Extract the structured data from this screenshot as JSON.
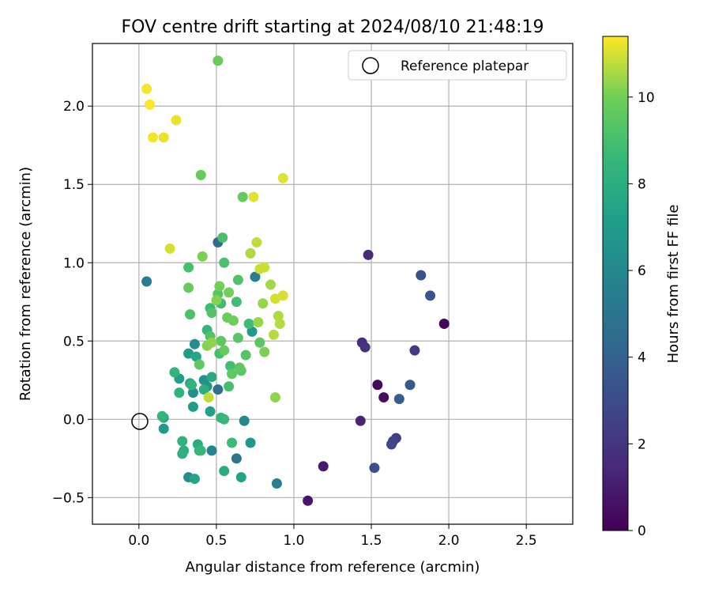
{
  "chart_data": {
    "type": "scatter",
    "title": "FOV centre drift starting at 2024/08/10 21:48:19",
    "xlabel": "Angular distance from reference (arcmin)",
    "ylabel": "Rotation from reference (arcmin)",
    "xlim": [
      -0.3,
      2.8
    ],
    "ylim": [
      -0.67,
      2.4
    ],
    "xticks": [
      0.0,
      0.5,
      1.0,
      1.5,
      2.0,
      2.5
    ],
    "xtick_labels": [
      "0.0",
      "0.5",
      "1.0",
      "1.5",
      "2.0",
      "2.5"
    ],
    "yticks": [
      -0.5,
      0.0,
      0.5,
      1.0,
      1.5,
      2.0
    ],
    "ytick_labels": [
      "−0.5",
      "0.0",
      "0.5",
      "1.0",
      "1.5",
      "2.0"
    ],
    "grid": true,
    "legend": {
      "placement": "top-right",
      "entries": [
        "Reference platepar"
      ]
    },
    "reference_point": {
      "x": 0.0,
      "y": 0.0
    },
    "colorbar": {
      "label": "Hours from first FF file",
      "colormap": "viridis",
      "range": [
        0,
        11.4
      ],
      "ticks": [
        0,
        2,
        4,
        6,
        8,
        10
      ],
      "tick_labels": [
        "0",
        "2",
        "4",
        "6",
        "8",
        "10"
      ]
    },
    "points": [
      {
        "x": 1.97,
        "y": 0.61,
        "c": 0.1
      },
      {
        "x": 1.54,
        "y": 0.22,
        "c": 0.3
      },
      {
        "x": 1.58,
        "y": 0.14,
        "c": 0.5
      },
      {
        "x": 1.09,
        "y": -0.52,
        "c": 0.8
      },
      {
        "x": 1.19,
        "y": -0.3,
        "c": 1.0
      },
      {
        "x": 1.43,
        "y": -0.01,
        "c": 1.3
      },
      {
        "x": 1.48,
        "y": 1.05,
        "c": 1.5
      },
      {
        "x": 1.44,
        "y": 0.49,
        "c": 1.7
      },
      {
        "x": 1.46,
        "y": 0.46,
        "c": 1.9
      },
      {
        "x": 1.78,
        "y": 0.44,
        "c": 2.2
      },
      {
        "x": 1.66,
        "y": -0.12,
        "c": 2.4
      },
      {
        "x": 1.64,
        "y": -0.14,
        "c": 2.6
      },
      {
        "x": 1.63,
        "y": -0.16,
        "c": 2.8
      },
      {
        "x": 1.52,
        "y": -0.31,
        "c": 3.0
      },
      {
        "x": 1.82,
        "y": 0.92,
        "c": 3.2
      },
      {
        "x": 1.88,
        "y": 0.79,
        "c": 3.4
      },
      {
        "x": 1.75,
        "y": 0.22,
        "c": 3.6
      },
      {
        "x": 1.68,
        "y": 0.13,
        "c": 3.8
      },
      {
        "x": 0.51,
        "y": 1.13,
        "c": 4.5
      },
      {
        "x": 0.51,
        "y": 0.19,
        "c": 4.7
      },
      {
        "x": 0.63,
        "y": -0.25,
        "c": 5.0
      },
      {
        "x": 0.05,
        "y": 0.88,
        "c": 5.5
      },
      {
        "x": 0.75,
        "y": 0.91,
        "c": 5.5
      },
      {
        "x": 0.89,
        "y": -0.41,
        "c": 5.6
      },
      {
        "x": 0.47,
        "y": -0.2,
        "c": 5.8
      },
      {
        "x": 0.68,
        "y": -0.01,
        "c": 6.0
      },
      {
        "x": 0.32,
        "y": -0.37,
        "c": 6.2
      },
      {
        "x": 0.36,
        "y": 0.48,
        "c": 6.3
      },
      {
        "x": 0.35,
        "y": 0.17,
        "c": 6.4
      },
      {
        "x": 0.42,
        "y": 0.25,
        "c": 6.5
      },
      {
        "x": 0.44,
        "y": 0.21,
        "c": 6.6
      },
      {
        "x": 0.72,
        "y": -0.15,
        "c": 6.7
      },
      {
        "x": 0.73,
        "y": 0.56,
        "c": 6.8
      },
      {
        "x": 0.16,
        "y": -0.06,
        "c": 6.9
      },
      {
        "x": 0.32,
        "y": 0.42,
        "c": 7.0
      },
      {
        "x": 0.26,
        "y": 0.26,
        "c": 7.1
      },
      {
        "x": 0.35,
        "y": 0.08,
        "c": 7.2
      },
      {
        "x": 0.46,
        "y": 0.05,
        "c": 7.3
      },
      {
        "x": 0.66,
        "y": -0.37,
        "c": 7.4
      },
      {
        "x": 0.36,
        "y": -0.38,
        "c": 7.5
      },
      {
        "x": 0.16,
        "y": 0.01,
        "c": 7.6
      },
      {
        "x": 0.37,
        "y": 0.4,
        "c": 7.6
      },
      {
        "x": 0.33,
        "y": 0.23,
        "c": 7.7
      },
      {
        "x": 0.47,
        "y": 0.27,
        "c": 7.8
      },
      {
        "x": 0.55,
        "y": -0.33,
        "c": 7.9
      },
      {
        "x": 0.42,
        "y": 0.19,
        "c": 8.0
      },
      {
        "x": 0.38,
        "y": -0.16,
        "c": 8.0
      },
      {
        "x": 0.39,
        "y": -0.2,
        "c": 8.1
      },
      {
        "x": 0.29,
        "y": -0.2,
        "c": 8.1
      },
      {
        "x": 0.28,
        "y": -0.14,
        "c": 8.2
      },
      {
        "x": 0.28,
        "y": -0.22,
        "c": 8.2
      },
      {
        "x": 0.34,
        "y": 0.22,
        "c": 8.3
      },
      {
        "x": 0.26,
        "y": 0.17,
        "c": 8.3
      },
      {
        "x": 0.23,
        "y": 0.3,
        "c": 8.4
      },
      {
        "x": 0.15,
        "y": 0.02,
        "c": 8.4
      },
      {
        "x": 0.44,
        "y": 0.57,
        "c": 8.5
      },
      {
        "x": 0.53,
        "y": 0.01,
        "c": 8.5
      },
      {
        "x": 0.55,
        "y": 0.0,
        "c": 8.6
      },
      {
        "x": 0.4,
        "y": -0.2,
        "c": 8.6
      },
      {
        "x": 0.6,
        "y": -0.15,
        "c": 8.7
      },
      {
        "x": 0.46,
        "y": 0.71,
        "c": 8.7
      },
      {
        "x": 0.71,
        "y": 0.61,
        "c": 8.8
      },
      {
        "x": 0.53,
        "y": 0.74,
        "c": 8.8
      },
      {
        "x": 0.63,
        "y": 0.75,
        "c": 8.9
      },
      {
        "x": 0.59,
        "y": 0.34,
        "c": 8.9
      },
      {
        "x": 0.58,
        "y": 0.21,
        "c": 9.0
      },
      {
        "x": 0.32,
        "y": 0.97,
        "c": 9.0
      },
      {
        "x": 0.52,
        "y": 0.42,
        "c": 9.0
      },
      {
        "x": 0.54,
        "y": 1.16,
        "c": 9.1
      },
      {
        "x": 0.55,
        "y": 1.0,
        "c": 9.1
      },
      {
        "x": 0.64,
        "y": 0.89,
        "c": 9.2
      },
      {
        "x": 0.33,
        "y": 0.67,
        "c": 9.2
      },
      {
        "x": 0.46,
        "y": 0.53,
        "c": 9.3
      },
      {
        "x": 0.47,
        "y": 0.68,
        "c": 9.3
      },
      {
        "x": 0.51,
        "y": 0.8,
        "c": 9.4
      },
      {
        "x": 0.64,
        "y": 0.52,
        "c": 9.4
      },
      {
        "x": 0.69,
        "y": 0.41,
        "c": 9.4
      },
      {
        "x": 0.78,
        "y": 0.49,
        "c": 9.5
      },
      {
        "x": 0.66,
        "y": 0.31,
        "c": 9.5
      },
      {
        "x": 0.53,
        "y": 0.5,
        "c": 9.5
      },
      {
        "x": 0.39,
        "y": 0.35,
        "c": 9.6
      },
      {
        "x": 0.6,
        "y": 0.29,
        "c": 9.6
      },
      {
        "x": 0.65,
        "y": 0.33,
        "c": 9.6
      },
      {
        "x": 0.55,
        "y": 0.44,
        "c": 9.7
      },
      {
        "x": 0.67,
        "y": 1.42,
        "c": 9.7
      },
      {
        "x": 0.4,
        "y": 1.56,
        "c": 9.8
      },
      {
        "x": 0.32,
        "y": 0.84,
        "c": 9.8
      },
      {
        "x": 0.51,
        "y": 2.29,
        "c": 9.8
      },
      {
        "x": 0.57,
        "y": 0.65,
        "c": 9.9
      },
      {
        "x": 0.61,
        "y": 0.63,
        "c": 9.9
      },
      {
        "x": 0.58,
        "y": 0.81,
        "c": 10.0
      },
      {
        "x": 0.52,
        "y": 0.85,
        "c": 10.0
      },
      {
        "x": 0.41,
        "y": 1.04,
        "c": 10.1
      },
      {
        "x": 0.81,
        "y": 0.43,
        "c": 10.1
      },
      {
        "x": 0.5,
        "y": 0.76,
        "c": 10.2
      },
      {
        "x": 0.44,
        "y": 0.47,
        "c": 10.2
      },
      {
        "x": 0.47,
        "y": 0.49,
        "c": 10.3
      },
      {
        "x": 0.88,
        "y": 0.14,
        "c": 10.3
      },
      {
        "x": 0.8,
        "y": 0.74,
        "c": 10.4
      },
      {
        "x": 0.77,
        "y": 0.62,
        "c": 10.4
      },
      {
        "x": 0.85,
        "y": 0.86,
        "c": 10.5
      },
      {
        "x": 0.72,
        "y": 1.06,
        "c": 10.6
      },
      {
        "x": 0.9,
        "y": 0.66,
        "c": 10.6
      },
      {
        "x": 0.91,
        "y": 0.61,
        "c": 10.7
      },
      {
        "x": 0.87,
        "y": 0.54,
        "c": 10.7
      },
      {
        "x": 0.45,
        "y": 0.14,
        "c": 10.8
      },
      {
        "x": 0.76,
        "y": 1.13,
        "c": 10.8
      },
      {
        "x": 0.81,
        "y": 0.97,
        "c": 10.9
      },
      {
        "x": 0.78,
        "y": 0.96,
        "c": 10.9
      },
      {
        "x": 0.88,
        "y": 0.77,
        "c": 11.0
      },
      {
        "x": 0.93,
        "y": 0.79,
        "c": 11.0
      },
      {
        "x": 0.2,
        "y": 1.09,
        "c": 11.0
      },
      {
        "x": 0.74,
        "y": 1.42,
        "c": 11.1
      },
      {
        "x": 0.93,
        "y": 1.54,
        "c": 11.1
      },
      {
        "x": 0.24,
        "y": 1.91,
        "c": 11.2
      },
      {
        "x": 0.16,
        "y": 1.8,
        "c": 11.2
      },
      {
        "x": 0.09,
        "y": 1.8,
        "c": 11.3
      },
      {
        "x": 0.05,
        "y": 2.11,
        "c": 11.3
      },
      {
        "x": 0.07,
        "y": 2.01,
        "c": 11.4
      }
    ]
  }
}
